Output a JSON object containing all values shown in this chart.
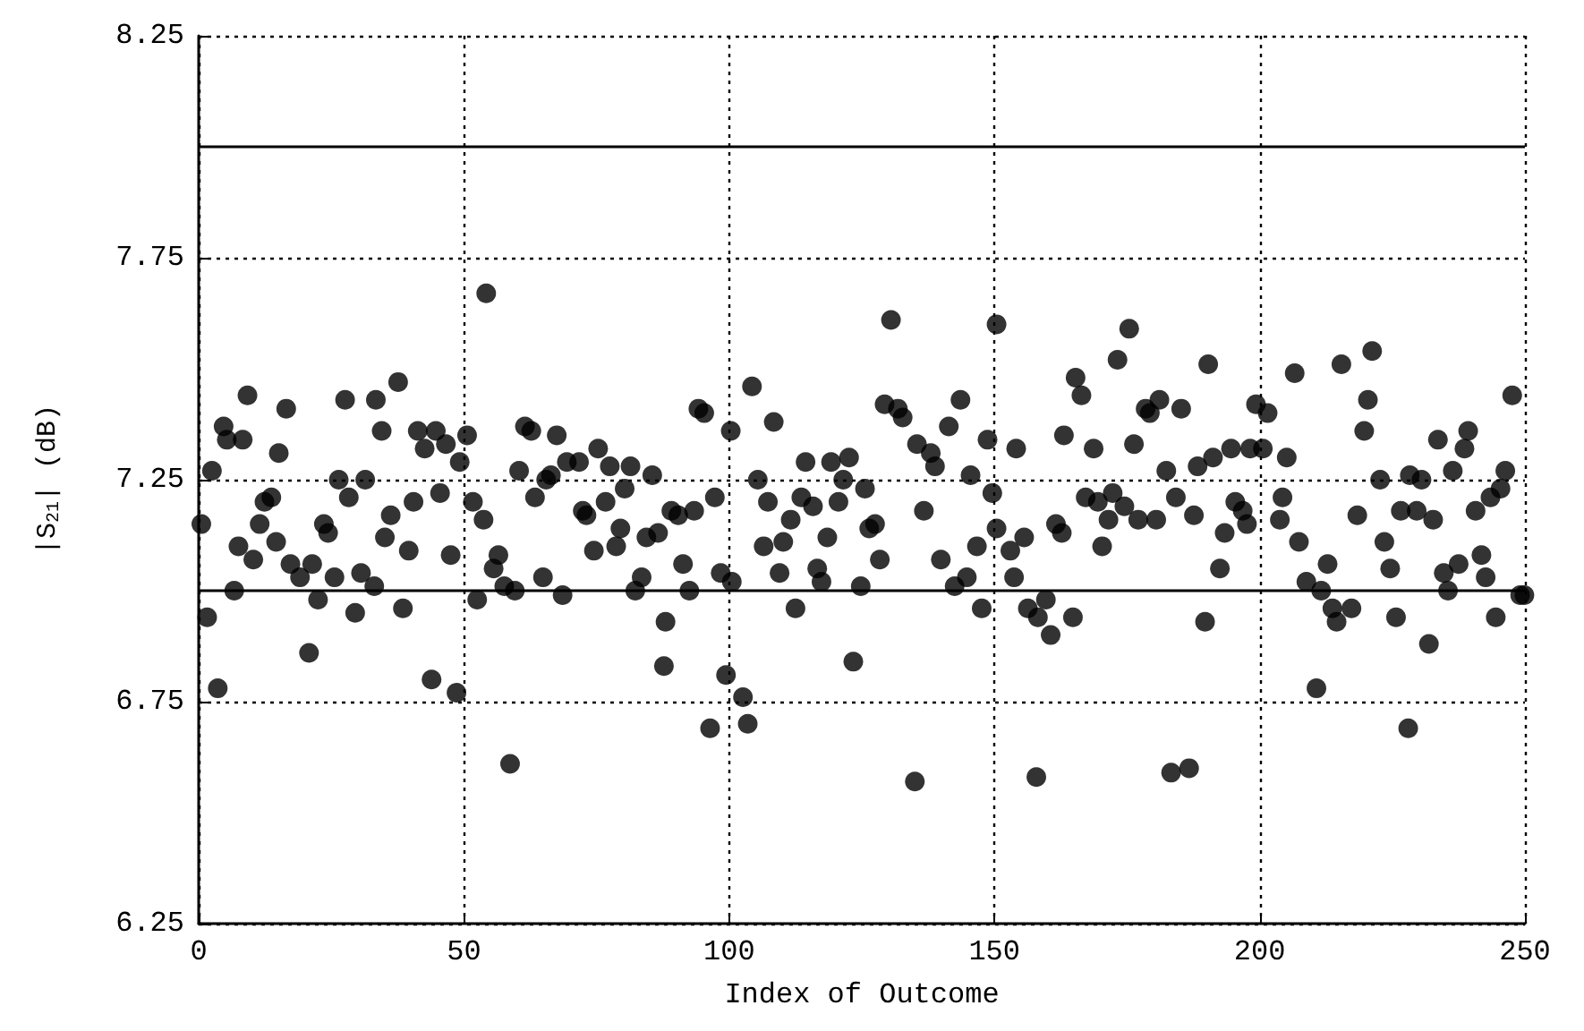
{
  "chart_data": {
    "type": "scatter",
    "xlabel": "Index of Outcome",
    "ylabel": "|S$_{21}$| (dB)",
    "xlim": [
      0,
      250
    ],
    "xticks": [
      0,
      50,
      100,
      150,
      200,
      250
    ],
    "ylim": [
      6.25,
      8.25
    ],
    "yticks": [
      6.25,
      6.75,
      7.25,
      7.75,
      8.25
    ],
    "grid": true,
    "marker": "circle",
    "color": "#000000",
    "ref_lines": [
      {
        "axis": "y",
        "value": 8.0,
        "color": "#000000",
        "line_style": "solid"
      },
      {
        "axis": "y",
        "value": 7.0,
        "color": "#000000",
        "line_style": "solid"
      }
    ],
    "x": [
      0.5,
      1.6,
      3.6,
      2.5,
      4.7,
      5.3,
      8.3,
      9.2,
      6.7,
      7.5,
      10.3,
      11.5,
      12.4,
      13.7,
      14.6,
      15.1,
      16.5,
      17.3,
      19.1,
      21.4,
      20.8,
      22.5,
      23.6,
      24.4,
      25.6,
      26.4,
      27.6,
      28.3,
      29.5,
      30.6,
      31.4,
      33.1,
      33.4,
      34.5,
      35.1,
      36.2,
      37.6,
      38.5,
      39.6,
      40.5,
      41.3,
      42.6,
      43.9,
      44.7,
      45.5,
      46.6,
      47.5,
      48.6,
      49.2,
      50.6,
      51.7,
      52.5,
      53.7,
      54.2,
      56.5,
      55.6,
      57.6,
      59.6,
      58.7,
      60.4,
      61.5,
      62.7,
      63.4,
      64.9,
      65.5,
      66.4,
      67.5,
      68.6,
      69.4,
      71.7,
      72.4,
      73.1,
      74.5,
      75.3,
      76.7,
      77.5,
      78.7,
      79.5,
      80.3,
      81.4,
      82.3,
      83.5,
      84.4,
      85.5,
      86.6,
      88.0,
      87.7,
      89.1,
      90.4,
      91.3,
      92.5,
      93.4,
      94.2,
      95.3,
      96.4,
      97.3,
      98.4,
      99.4,
      100.3,
      100.5,
      102.6,
      103.5,
      104.3,
      105.4,
      106.5,
      107.3,
      108.4,
      109.5,
      110.2,
      111.6,
      112.5,
      113.6,
      114.4,
      115.8,
      116.6,
      117.4,
      118.5,
      119.2,
      120.6,
      121.5,
      122.6,
      123.4,
      124.8,
      125.6,
      126.4,
      127.5,
      128.4,
      129.3,
      130.5,
      131.8,
      132.7,
      135.0,
      135.4,
      136.7,
      138.0,
      138.8,
      139.9,
      141.4,
      142.5,
      143.6,
      144.8,
      145.5,
      146.7,
      147.6,
      148.7,
      149.6,
      150.4,
      150.4,
      153.0,
      154.1,
      153.7,
      155.6,
      156.3,
      157.9,
      158.2,
      159.7,
      160.6,
      161.6,
      162.7,
      163.1,
      164.8,
      165.3,
      166.4,
      167.2,
      168.7,
      169.5,
      170.3,
      171.5,
      172.3,
      173.2,
      174.5,
      175.4,
      176.3,
      177.1,
      178.5,
      179.3,
      180.5,
      181.1,
      182.4,
      183.3,
      184.2,
      185.2,
      186.7,
      187.6,
      188.3,
      189.7,
      190.3,
      191.2,
      192.5,
      193.4,
      194.6,
      195.4,
      196.8,
      197.6,
      198.2,
      199.3,
      200.6,
      201.5,
      205.1,
      206.6,
      204.3,
      203.8,
      207.4,
      208.8,
      210.7,
      211.6,
      212.8,
      213.7,
      214.5,
      215.4,
      217.3,
      218.4,
      219.7,
      220.4,
      221.2,
      222.7,
      223.5,
      224.6,
      225.7,
      226.6,
      228.0,
      228.3,
      229.6,
      230.5,
      231.9,
      232.7,
      233.6,
      234.7,
      235.5,
      236.4,
      237.5,
      238.6,
      239.3,
      240.7,
      241.8,
      242.6,
      243.5,
      244.5,
      245.4,
      246.3,
      247.6,
      249.1,
      249.9
    ],
    "values": [
      7.15,
      6.94,
      6.78,
      7.27,
      7.37,
      7.34,
      7.34,
      7.44,
      7.0,
      7.1,
      7.07,
      7.15,
      7.2,
      7.21,
      7.11,
      7.31,
      7.41,
      7.06,
      7.03,
      7.06,
      6.86,
      6.98,
      7.15,
      7.13,
      7.03,
      7.25,
      7.43,
      7.21,
      6.95,
      7.04,
      7.25,
      7.01,
      7.43,
      7.36,
      7.12,
      7.17,
      7.47,
      6.96,
      7.09,
      7.2,
      7.36,
      7.32,
      6.8,
      7.36,
      7.22,
      7.33,
      7.08,
      6.77,
      7.29,
      7.35,
      7.2,
      6.98,
      7.16,
      7.67,
      7.08,
      7.05,
      7.01,
      7.0,
      6.61,
      7.27,
      7.37,
      7.36,
      7.21,
      7.03,
      7.25,
      7.26,
      7.35,
      6.99,
      7.29,
      7.29,
      7.18,
      7.17,
      7.09,
      7.32,
      7.2,
      7.28,
      7.1,
      7.14,
      7.23,
      7.28,
      7.0,
      7.03,
      7.12,
      7.26,
      7.13,
      6.93,
      6.83,
      7.18,
      7.17,
      7.06,
      7.0,
      7.18,
      7.41,
      7.4,
      6.69,
      7.21,
      7.04,
      6.81,
      7.36,
      7.02,
      6.76,
      6.7,
      7.46,
      7.25,
      7.1,
      7.2,
      7.38,
      7.04,
      7.11,
      7.16,
      6.96,
      7.21,
      7.29,
      7.19,
      7.05,
      7.02,
      7.12,
      7.29,
      7.2,
      7.25,
      7.3,
      6.84,
      7.01,
      7.23,
      7.14,
      7.15,
      7.07,
      7.42,
      7.61,
      7.41,
      7.39,
      6.57,
      7.33,
      7.18,
      7.31,
      7.28,
      7.07,
      7.37,
      7.01,
      7.43,
      7.03,
      7.26,
      7.1,
      6.96,
      7.34,
      7.22,
      7.6,
      7.14,
      7.09,
      7.32,
      7.03,
      7.12,
      6.96,
      6.58,
      6.94,
      6.98,
      6.9,
      7.15,
      7.13,
      7.35,
      6.94,
      7.48,
      7.44,
      7.21,
      7.32,
      7.2,
      7.1,
      7.16,
      7.22,
      7.52,
      7.19,
      7.59,
      7.33,
      7.16,
      7.41,
      7.4,
      7.16,
      7.43,
      7.27,
      6.59,
      7.21,
      7.41,
      6.6,
      7.17,
      7.28,
      6.93,
      7.51,
      7.3,
      7.05,
      7.13,
      7.32,
      7.2,
      7.18,
      7.15,
      7.32,
      7.42,
      7.32,
      7.4,
      7.3,
      7.49,
      7.21,
      7.16,
      7.11,
      7.02,
      6.78,
      7.0,
      7.06,
      6.96,
      6.93,
      7.51,
      6.96,
      7.17,
      7.36,
      7.43,
      7.54,
      7.25,
      7.11,
      7.05,
      6.94,
      7.18,
      6.69,
      7.26,
      7.18,
      7.25,
      6.88,
      7.16,
      7.34,
      7.04,
      7.0,
      7.27,
      7.06,
      7.32,
      7.36,
      7.18,
      7.08,
      7.03,
      7.21,
      6.94,
      7.23,
      7.27,
      7.44,
      6.99,
      6.99
    ]
  }
}
